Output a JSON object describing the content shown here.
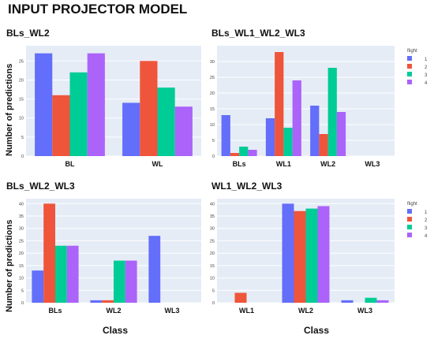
{
  "page_title": "INPUT PROJECTOR MODEL",
  "ylabel_top": "Number of predictions",
  "ylabel_bottom": "Number of predictions",
  "xlabel_left": "Class",
  "xlabel_right": "Class",
  "colors": {
    "1": "#636efa",
    "2": "#ef553b",
    "3": "#00cc96",
    "4": "#ab63fa",
    "plot_bg": "#e5ecf6",
    "grid": "#ffffff"
  },
  "legend_title": "flight",
  "legend_items": [
    "1",
    "2",
    "3",
    "4"
  ],
  "chart_data": [
    {
      "type": "bar",
      "title": "BLs_WL2",
      "categories": [
        "BL",
        "WL"
      ],
      "ylim": [
        0,
        29
      ],
      "yticks": [
        0,
        5,
        10,
        15,
        20,
        25
      ],
      "series": [
        {
          "name": "1",
          "values": [
            27,
            14
          ]
        },
        {
          "name": "2",
          "values": [
            16,
            25
          ]
        },
        {
          "name": "3",
          "values": [
            22,
            18
          ]
        },
        {
          "name": "4",
          "values": [
            27,
            13
          ]
        }
      ],
      "legend": false
    },
    {
      "type": "bar",
      "title": "BLs_WL1_WL2_WL3",
      "categories": [
        "BLs",
        "WL1",
        "WL2",
        "WL3"
      ],
      "ylim": [
        0,
        35
      ],
      "yticks": [
        0,
        5,
        10,
        15,
        20,
        25,
        30
      ],
      "series": [
        {
          "name": "1",
          "values": [
            13,
            12,
            16,
            0
          ]
        },
        {
          "name": "2",
          "values": [
            1,
            33,
            7,
            0
          ]
        },
        {
          "name": "3",
          "values": [
            3,
            9,
            28,
            0
          ]
        },
        {
          "name": "4",
          "values": [
            2,
            24,
            14,
            0
          ]
        }
      ],
      "legend": "right"
    },
    {
      "type": "bar",
      "title": "BLs_WL2_WL3",
      "categories": [
        "BLs",
        "WL2",
        "WL3"
      ],
      "ylim": [
        0,
        42
      ],
      "yticks": [
        0,
        5,
        10,
        15,
        20,
        25,
        30,
        35,
        40
      ],
      "series": [
        {
          "name": "1",
          "values": [
            13,
            1,
            27
          ]
        },
        {
          "name": "2",
          "values": [
            40,
            1,
            0
          ]
        },
        {
          "name": "3",
          "values": [
            23,
            17,
            0
          ]
        },
        {
          "name": "4",
          "values": [
            23,
            17,
            0
          ]
        }
      ],
      "legend": false
    },
    {
      "type": "bar",
      "title": "WL1_WL2_WL3",
      "categories": [
        "WL1",
        "WL2",
        "WL3"
      ],
      "ylim": [
        0,
        42
      ],
      "yticks": [
        0,
        5,
        10,
        15,
        20,
        25,
        30,
        35,
        40
      ],
      "series": [
        {
          "name": "1",
          "values": [
            0,
            40,
            1
          ]
        },
        {
          "name": "2",
          "values": [
            4,
            37,
            0
          ]
        },
        {
          "name": "3",
          "values": [
            0,
            38,
            2
          ]
        },
        {
          "name": "4",
          "values": [
            0,
            39,
            1
          ]
        }
      ],
      "legend": "right"
    }
  ]
}
